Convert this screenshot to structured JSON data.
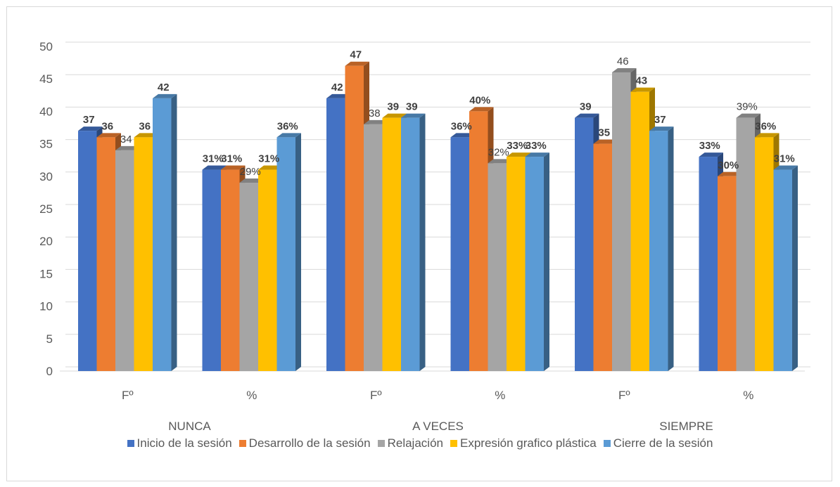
{
  "chart_data": {
    "type": "bar",
    "style": "3d-clustered-column",
    "groups": [
      {
        "label": "NUNCA",
        "categories": [
          "Fº",
          "%"
        ]
      },
      {
        "label": "A VECES",
        "categories": [
          "Fº",
          "%"
        ]
      },
      {
        "label": "SIEMPRE",
        "categories": [
          "Fº",
          "%"
        ]
      }
    ],
    "categories": [
      "Fº",
      "%",
      "Fº",
      "%",
      "Fº",
      "%"
    ],
    "series": [
      {
        "name": "Inicio de la sesión",
        "color": "#4472c4",
        "values": [
          37,
          31,
          42,
          36,
          39,
          33
        ],
        "labels": [
          "37",
          "31%",
          "42",
          "36%",
          "39",
          "33%"
        ]
      },
      {
        "name": "Desarrollo de la sesión",
        "color": "#ed7d31",
        "values": [
          36,
          31,
          47,
          40,
          35,
          30
        ],
        "labels": [
          "36",
          "31%",
          "47",
          "40%",
          "35",
          "30%"
        ]
      },
      {
        "name": "Relajación",
        "color": "#a5a5a5",
        "values": [
          34,
          29,
          38,
          32,
          46,
          39
        ],
        "labels": [
          "34",
          "29%",
          "38",
          "32%",
          "46",
          "39%"
        ]
      },
      {
        "name": "Expresión grafico plástica",
        "color": "#ffc000",
        "values": [
          36,
          31,
          39,
          33,
          43,
          36
        ],
        "labels": [
          "36",
          "31%",
          "39",
          "33%",
          "43",
          "36%"
        ]
      },
      {
        "name": "Cierre de la sesión",
        "color": "#5b9bd5",
        "values": [
          42,
          36,
          39,
          33,
          37,
          31
        ],
        "labels": [
          "42",
          "36%",
          "39",
          "33%",
          "37",
          "31%"
        ]
      }
    ],
    "yticks": [
      0,
      5,
      10,
      15,
      20,
      25,
      30,
      35,
      40,
      45,
      50
    ],
    "ylim": [
      0,
      50
    ],
    "grid": true,
    "legend": "bottom",
    "title": "",
    "xlabel": "",
    "ylabel": ""
  }
}
